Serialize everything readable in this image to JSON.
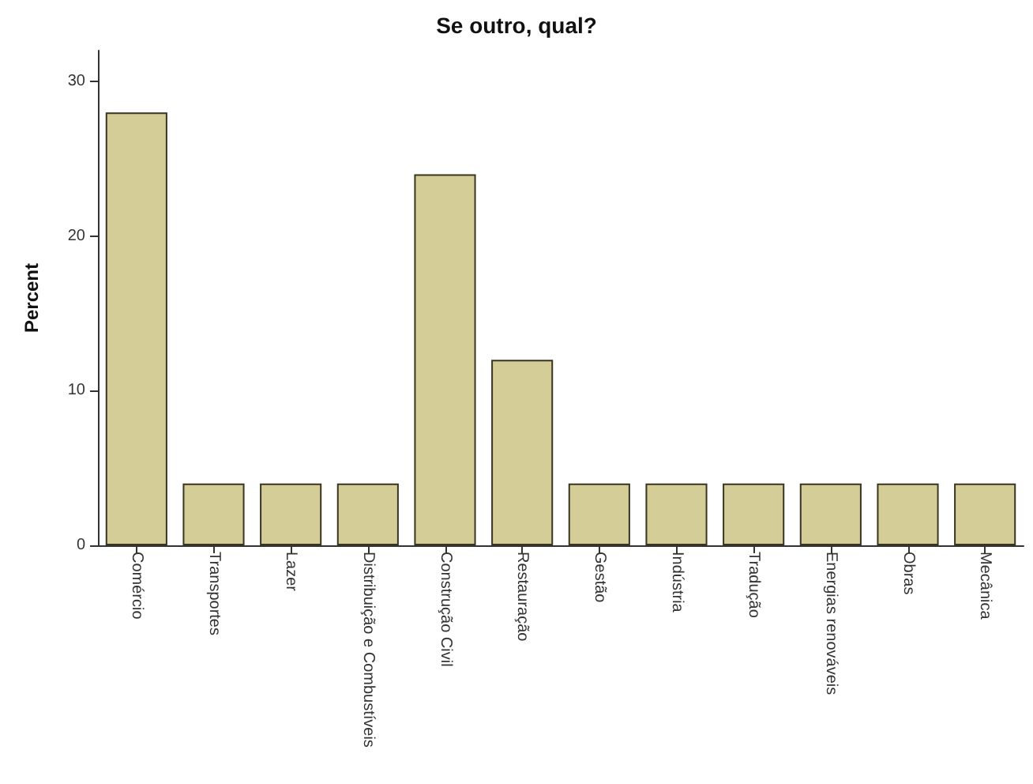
{
  "chart_data": {
    "type": "bar",
    "title": "Se outro, qual?",
    "ylabel": "Percent",
    "categories": [
      "Comércio",
      "Transportes",
      "Lazer",
      "Distribuição e Combustíveis",
      "Construção Civil",
      "Restauração",
      "Gestão",
      "Indústria",
      "Tradução",
      "Energias renováveis",
      "Obras",
      "Mecânica"
    ],
    "values": [
      28,
      4,
      4,
      4,
      24,
      12,
      4,
      4,
      4,
      4,
      4,
      4
    ],
    "color": "#d4cd98",
    "ylim": [
      0,
      32
    ],
    "yticks": [
      0,
      10,
      20,
      30
    ],
    "grid": false
  }
}
